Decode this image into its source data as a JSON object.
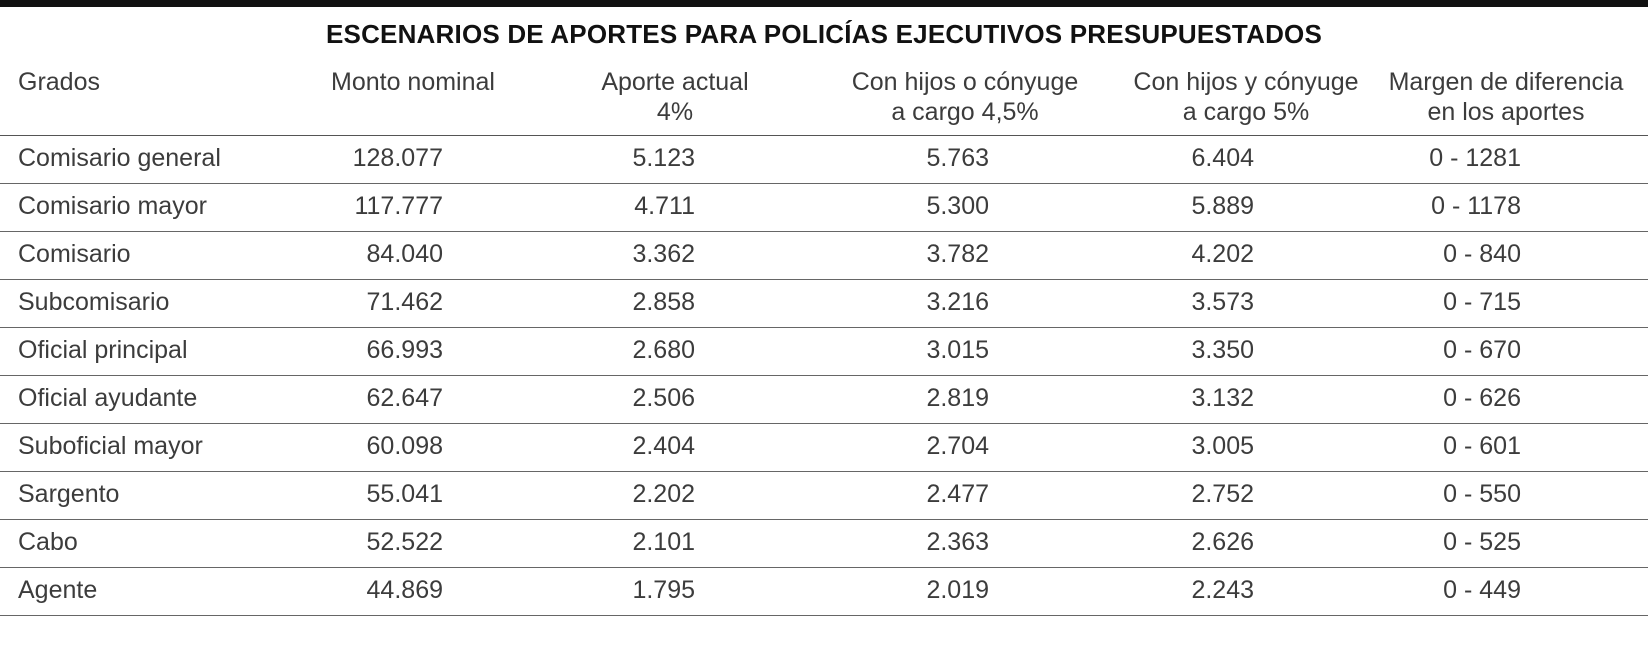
{
  "chart_data": {
    "type": "table",
    "title": "ESCENARIOS DE APORTES PARA POLICÍAS EJECUTIVOS PRESUPUESTADOS",
    "columns": [
      {
        "line1": "Grados",
        "line2": ""
      },
      {
        "line1": "Monto nominal",
        "line2": ""
      },
      {
        "line1": "Aporte actual",
        "line2": "4%"
      },
      {
        "line1": "Con hijos o cónyuge",
        "line2": "a cargo 4,5%"
      },
      {
        "line1": "Con hijos y cónyuge",
        "line2": "a cargo 5%"
      },
      {
        "line1": "Margen de diferencia",
        "line2": "en los aportes"
      }
    ],
    "rows": [
      [
        "Comisario general",
        "128.077",
        "5.123",
        "5.763",
        "6.404",
        "0 - 1281"
      ],
      [
        "Comisario mayor",
        "117.777",
        "4.711",
        "5.300",
        "5.889",
        "0 - 1178"
      ],
      [
        "Comisario",
        "84.040",
        "3.362",
        "3.782",
        "4.202",
        "0 - 840"
      ],
      [
        "Subcomisario",
        "71.462",
        "2.858",
        "3.216",
        "3.573",
        "0 - 715"
      ],
      [
        "Oficial principal",
        "66.993",
        "2.680",
        "3.015",
        "3.350",
        "0 - 670"
      ],
      [
        "Oficial ayudante",
        "62.647",
        "2.506",
        "2.819",
        "3.132",
        "0 - 626"
      ],
      [
        "Suboficial mayor",
        "60.098",
        "2.404",
        "2.704",
        "3.005",
        "0 - 601"
      ],
      [
        "Sargento",
        "55.041",
        "2.202",
        "2.477",
        "2.752",
        "0 - 550"
      ],
      [
        "Cabo",
        "52.522",
        "2.101",
        "2.363",
        "2.626",
        "0 - 525"
      ],
      [
        "Agente",
        "44.869",
        "1.795",
        "2.019",
        "2.243",
        "0 - 449"
      ]
    ]
  }
}
